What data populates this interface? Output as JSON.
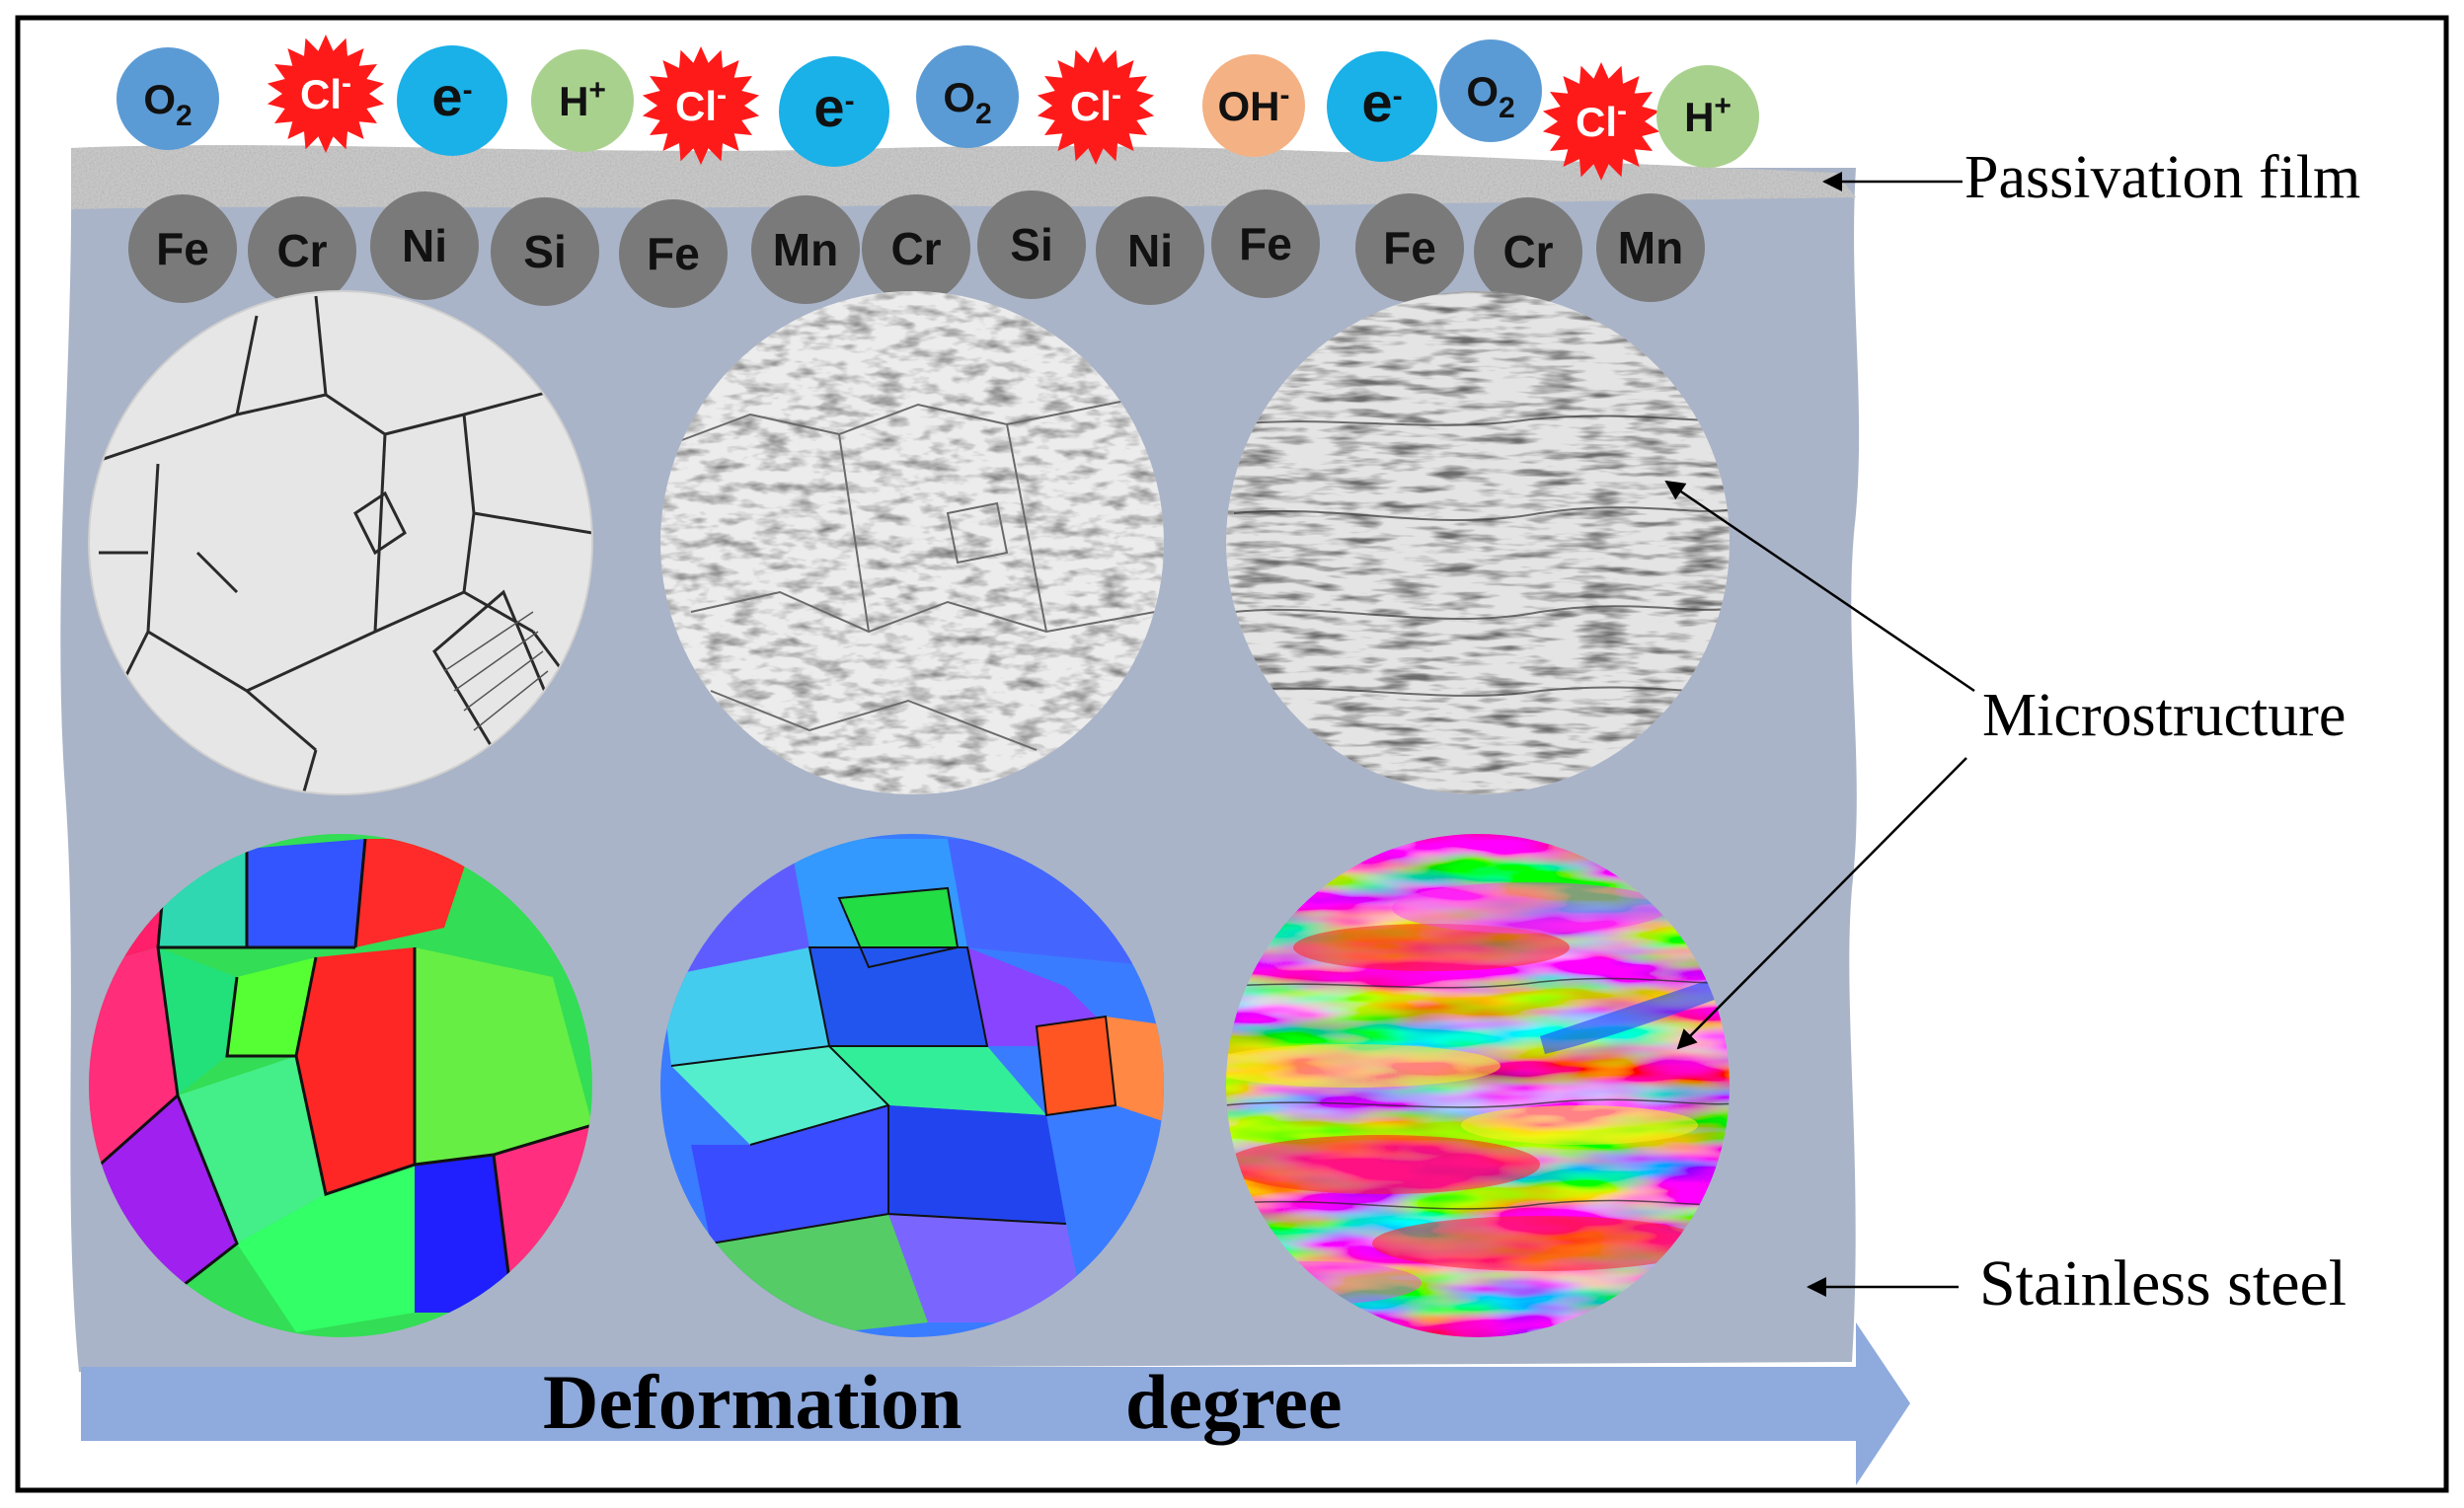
{
  "labels": {
    "passivation": "Passivation  film",
    "microstructure": "Microstructure",
    "steel": "Stainless steel",
    "deformation_word1": "Deformation",
    "deformation_word2": "degree"
  },
  "ions": [
    {
      "base": "O",
      "sup": "",
      "sub": "2",
      "kind": "o2"
    },
    {
      "base": "Cl",
      "sup": "-",
      "sub": "",
      "kind": "cl"
    },
    {
      "base": "e",
      "sup": "-",
      "sub": "",
      "kind": "e"
    },
    {
      "base": "H",
      "sup": "+",
      "sub": "",
      "kind": "h"
    },
    {
      "base": "Cl",
      "sup": "-",
      "sub": "",
      "kind": "cl"
    },
    {
      "base": "e",
      "sup": "-",
      "sub": "",
      "kind": "e"
    },
    {
      "base": "O",
      "sup": "",
      "sub": "2",
      "kind": "o2"
    },
    {
      "base": "Cl",
      "sup": "-",
      "sub": "",
      "kind": "cl"
    },
    {
      "base": "OH",
      "sup": "-",
      "sub": "",
      "kind": "oh"
    },
    {
      "base": "e",
      "sup": "-",
      "sub": "",
      "kind": "e"
    },
    {
      "base": "O",
      "sup": "",
      "sub": "2",
      "kind": "o2"
    },
    {
      "base": "Cl",
      "sup": "-",
      "sub": "",
      "kind": "cl"
    },
    {
      "base": "H",
      "sup": "+",
      "sub": "",
      "kind": "h"
    }
  ],
  "atoms": [
    "Fe",
    "Cr",
    "Ni",
    "Si",
    "Fe",
    "Mn",
    "Cr",
    "Si",
    "Ni",
    "Fe",
    "Fe",
    "Cr",
    "Mn"
  ],
  "colors": {
    "steel": "#aab4c8",
    "o2": "#5b9bd5",
    "cl": "#ff1a1a",
    "e": "#1ab0e8",
    "h": "#a9d18e",
    "oh": "#f4b183",
    "atom": "#7a7a7a",
    "arrow": "#8faadc"
  }
}
